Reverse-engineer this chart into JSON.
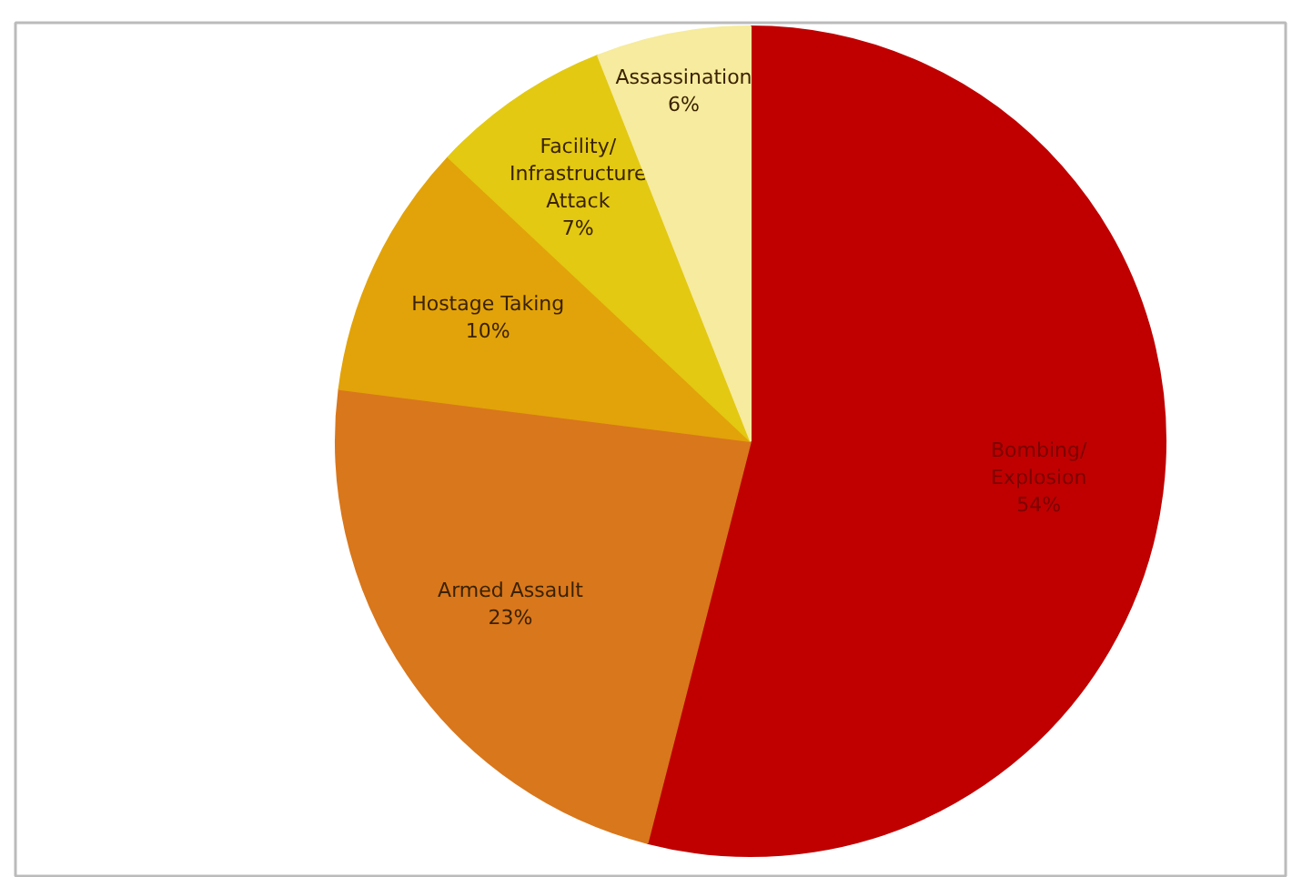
{
  "chart_data": {
    "type": "pie",
    "categories": [
      "Bombing/\nExplosion",
      "Armed Assault",
      "Hostage Taking",
      "Facility/\nInfrastructure\nAttack",
      "Assassination"
    ],
    "values": [
      54,
      23,
      10,
      7,
      6
    ],
    "colors": [
      "#c00000",
      "#d9771c",
      "#e2a30a",
      "#e3c912",
      "#f6eb9e"
    ],
    "value_labels": [
      "54%",
      "23%",
      "10%",
      "7%",
      "6%"
    ]
  }
}
